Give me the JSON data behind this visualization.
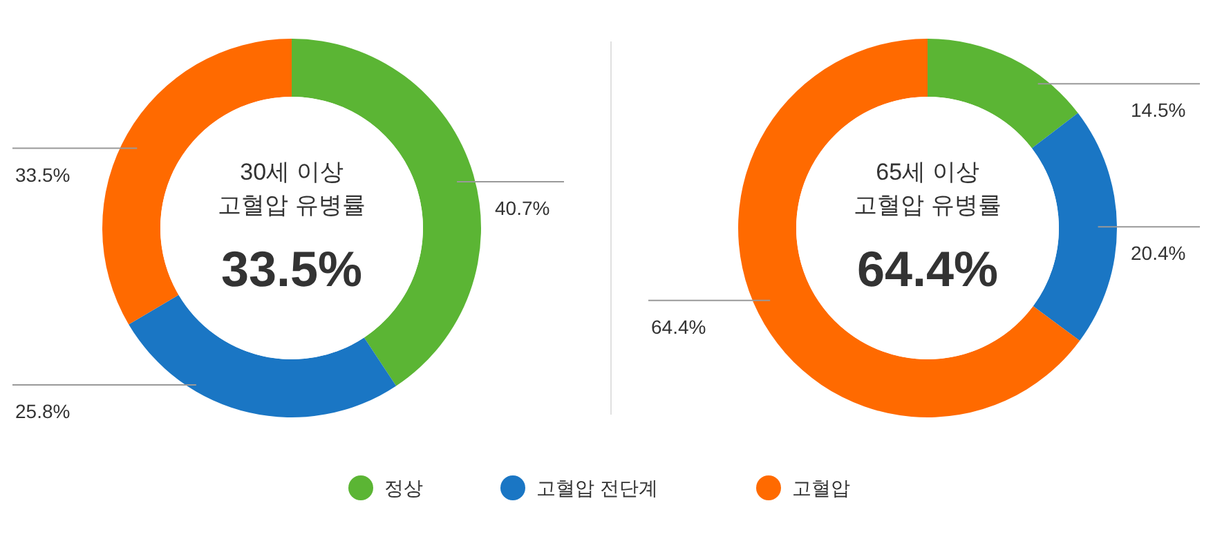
{
  "chart_data": [
    {
      "type": "donut",
      "title": "30세 이상\n고혈압 유병률",
      "annotations": [
        "33.5%"
      ],
      "categories": [
        "정상",
        "고혈압 전단계",
        "고혈압"
      ],
      "values": [
        40.7,
        25.8,
        33.5
      ],
      "colors": [
        "#5bb534",
        "#1a76c4",
        "#ff6a00"
      ],
      "value_labels": [
        "40.7%",
        "25.8%",
        "33.5%"
      ],
      "legend": "bottom"
    },
    {
      "type": "donut",
      "title": "65세 이상\n고혈압 유병률",
      "annotations": [
        "64.4%"
      ],
      "categories": [
        null,
        null,
        null
      ],
      "values": [
        14.5,
        20.4,
        64.4
      ],
      "colors": [
        "#5bb534",
        "#1a76c4",
        "#ff6a00"
      ],
      "value_labels": [
        "14.5%",
        "20.4%",
        "64.4%"
      ]
    }
  ]
}
